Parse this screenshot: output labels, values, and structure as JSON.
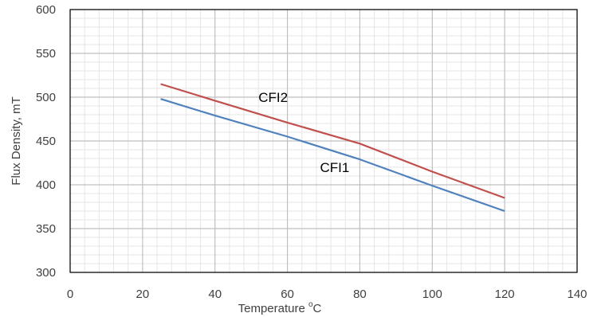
{
  "chart_data": {
    "type": "line",
    "title": "",
    "xlabel": "Temperature °C",
    "xlabel_parts": {
      "main": "Temperature ",
      "superscript": "o",
      "unit": "C"
    },
    "ylabel": "Flux Density, mT",
    "xlim": [
      0,
      140
    ],
    "ylim": [
      300,
      600
    ],
    "x_ticks": [
      0,
      20,
      40,
      60,
      80,
      100,
      120,
      140
    ],
    "y_ticks": [
      300,
      350,
      400,
      450,
      500,
      550,
      600
    ],
    "x_minor_step": 4,
    "y_minor_step": 10,
    "grid": true,
    "legend": "none",
    "series": [
      {
        "name": "CFI2",
        "color": "#C0504D",
        "x": [
          25,
          40,
          60,
          80,
          100,
          120
        ],
        "y": [
          515,
          496,
          471,
          447,
          415,
          385
        ]
      },
      {
        "name": "CFI1",
        "color": "#4F81BD",
        "x": [
          25,
          40,
          60,
          80,
          100,
          120
        ],
        "y": [
          498,
          479,
          455,
          429,
          399,
          370
        ]
      }
    ],
    "annotations": [
      {
        "text": "CFI2",
        "x": 52,
        "y": 500
      },
      {
        "text": "CFI1",
        "x": 69,
        "y": 420
      }
    ]
  }
}
